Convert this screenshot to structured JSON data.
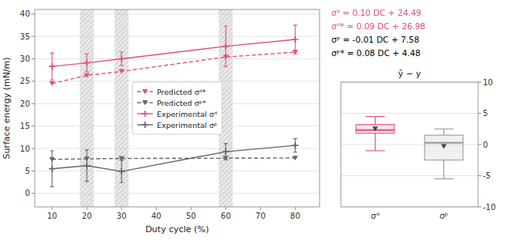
{
  "chart_data": [
    {
      "type": "line",
      "xlabel": "Duty cycle (%)",
      "ylabel": "Surface energy (mN/m)",
      "x": [
        10,
        20,
        30,
        60,
        80
      ],
      "xlim": [
        5,
        87
      ],
      "xticks": [
        10,
        20,
        30,
        40,
        50,
        60,
        70,
        80
      ],
      "ylim": [
        -3,
        41
      ],
      "yticks": [
        0,
        5,
        10,
        15,
        20,
        25,
        30,
        35,
        40
      ],
      "grid": true,
      "legend": "center",
      "shaded_regions": [
        [
          18,
          22
        ],
        [
          28,
          32
        ],
        [
          58,
          62
        ]
      ],
      "series": [
        {
          "name": "Predicted σᵈ*",
          "color": "#e05080",
          "line_style": "dashed",
          "marker": "triangle-down",
          "values": [
            24.5,
            26.3,
            27.2,
            30.4,
            31.5
          ]
        },
        {
          "name": "Predicted σᵖ*",
          "color": "#666666",
          "line_style": "dashed",
          "marker": "triangle-down",
          "values": [
            7.6,
            7.7,
            7.8,
            7.85,
            7.9
          ]
        },
        {
          "name": "Experimental σᵈ",
          "color": "#e05080",
          "line_style": "solid",
          "marker": "plus",
          "values": [
            28.3,
            29.1,
            30.0,
            32.8,
            34.3
          ],
          "errors": [
            3.0,
            2.0,
            1.5,
            4.5,
            3.2
          ]
        },
        {
          "name": "Experimental σᵖ",
          "color": "#666666",
          "line_style": "solid",
          "marker": "plus",
          "values": [
            5.5,
            6.2,
            4.9,
            9.3,
            10.7
          ],
          "errors": [
            4.0,
            3.5,
            2.5,
            1.8,
            1.5
          ]
        }
      ],
      "annotations": [
        {
          "text": "σᵈ = 0.10 DC + 24.49",
          "color": "#e05080"
        },
        {
          "text": "σᵈ* = 0.09 DC + 26.98",
          "color": "#e05080"
        },
        {
          "text": "σᵖ = -0.01 DC + 7.58",
          "color": "#000000"
        },
        {
          "text": "σᵖ* = 0.08 DC + 4.48",
          "color": "#000000"
        }
      ]
    },
    {
      "type": "box",
      "title": "ŷ − y",
      "categories": [
        "σᵈ",
        "σᵖ"
      ],
      "q1": [
        1.8,
        -2.5
      ],
      "q3": [
        3.2,
        1.5
      ],
      "median": [
        2.3,
        0.3
      ],
      "mean": [
        2.5,
        -0.3
      ],
      "whisker_low": [
        -1.0,
        -5.5
      ],
      "whisker_high": [
        4.5,
        2.5
      ],
      "colors": [
        "#e05080",
        "#999999"
      ],
      "marker": "triangle-down",
      "ylim": [
        -10,
        10
      ],
      "yticks": [
        -10,
        -5,
        0,
        5,
        10
      ],
      "grid": true
    }
  ]
}
